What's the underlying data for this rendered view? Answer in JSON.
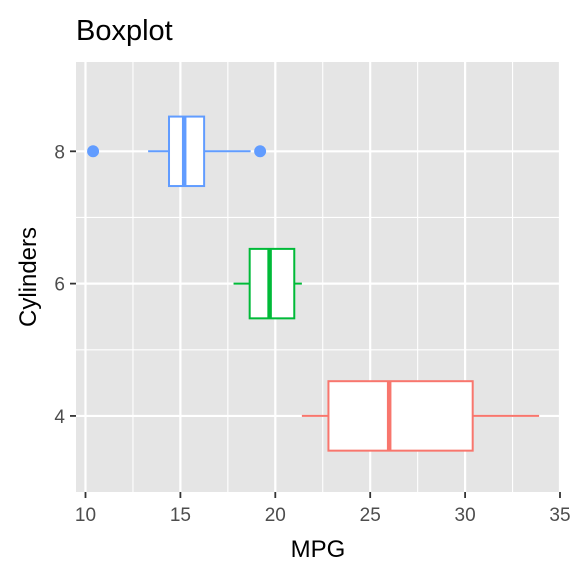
{
  "chart_data": {
    "type": "boxplot",
    "orientation": "horizontal",
    "title": "Boxplot",
    "xlabel": "MPG",
    "ylabel": "Cylinders",
    "xlim": [
      9.5,
      35
    ],
    "ylim": [
      2.85,
      9.35
    ],
    "x_ticks": [
      10,
      15,
      20,
      25,
      30,
      35
    ],
    "x_tick_labels": [
      "10",
      "15",
      "20",
      "25",
      "30",
      "35"
    ],
    "y_ticks": [
      4,
      6,
      8
    ],
    "y_tick_labels": [
      "4",
      "6",
      "8"
    ],
    "grid": true,
    "legend": "none",
    "panel_background": "#e5e5e5",
    "grid_color": "#ffffff",
    "series": [
      {
        "category": "4",
        "y": 4,
        "whisker_low": 21.4,
        "q1": 22.8,
        "median": 26.0,
        "q3": 30.4,
        "whisker_high": 33.9,
        "outliers": [],
        "color": "#f8766d"
      },
      {
        "category": "6",
        "y": 6,
        "whisker_low": 17.8,
        "q1": 18.65,
        "median": 19.7,
        "q3": 21.0,
        "whisker_high": 21.4,
        "outliers": [],
        "color": "#00ba38"
      },
      {
        "category": "8",
        "y": 8,
        "whisker_low": 13.3,
        "q1": 14.4,
        "median": 15.2,
        "q3": 16.25,
        "whisker_high": 18.7,
        "outliers": [
          10.4,
          19.2
        ],
        "color": "#619cff"
      }
    ]
  }
}
